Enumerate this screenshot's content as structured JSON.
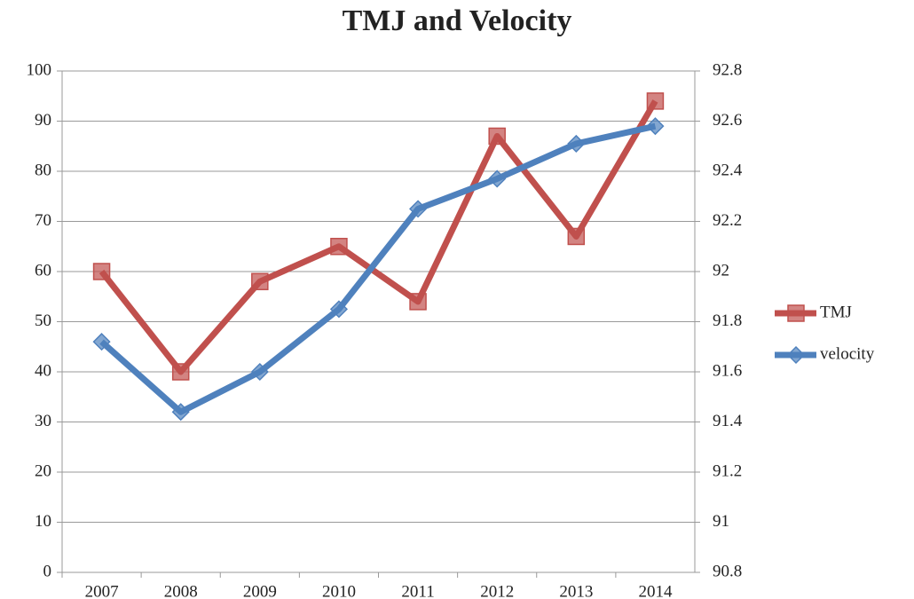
{
  "chart_data": {
    "type": "line",
    "title": "TMJ and Velocity",
    "categories": [
      "2007",
      "2008",
      "2009",
      "2010",
      "2011",
      "2012",
      "2013",
      "2014"
    ],
    "series": [
      {
        "name": "TMJ",
        "color": "#c0504d",
        "marker": "square",
        "values": [
          60,
          40,
          58,
          65,
          54,
          87,
          67,
          94
        ]
      },
      {
        "name": "velocity",
        "color": "#4f81bd",
        "marker": "diamond",
        "axis": "y2",
        "values": [
          91.72,
          91.44,
          91.6,
          91.85,
          92.25,
          92.37,
          92.51,
          92.58
        ]
      }
    ],
    "ylim": [
      0,
      100
    ],
    "yticks": [
      0,
      10,
      20,
      30,
      40,
      50,
      60,
      70,
      80,
      90,
      100
    ],
    "y2lim": [
      90.8,
      92.8
    ],
    "y2ticks": [
      90.8,
      91,
      91.2,
      91.4,
      91.6,
      91.8,
      92,
      92.2,
      92.4,
      92.6,
      92.8
    ],
    "grid": true,
    "legend": "right"
  }
}
